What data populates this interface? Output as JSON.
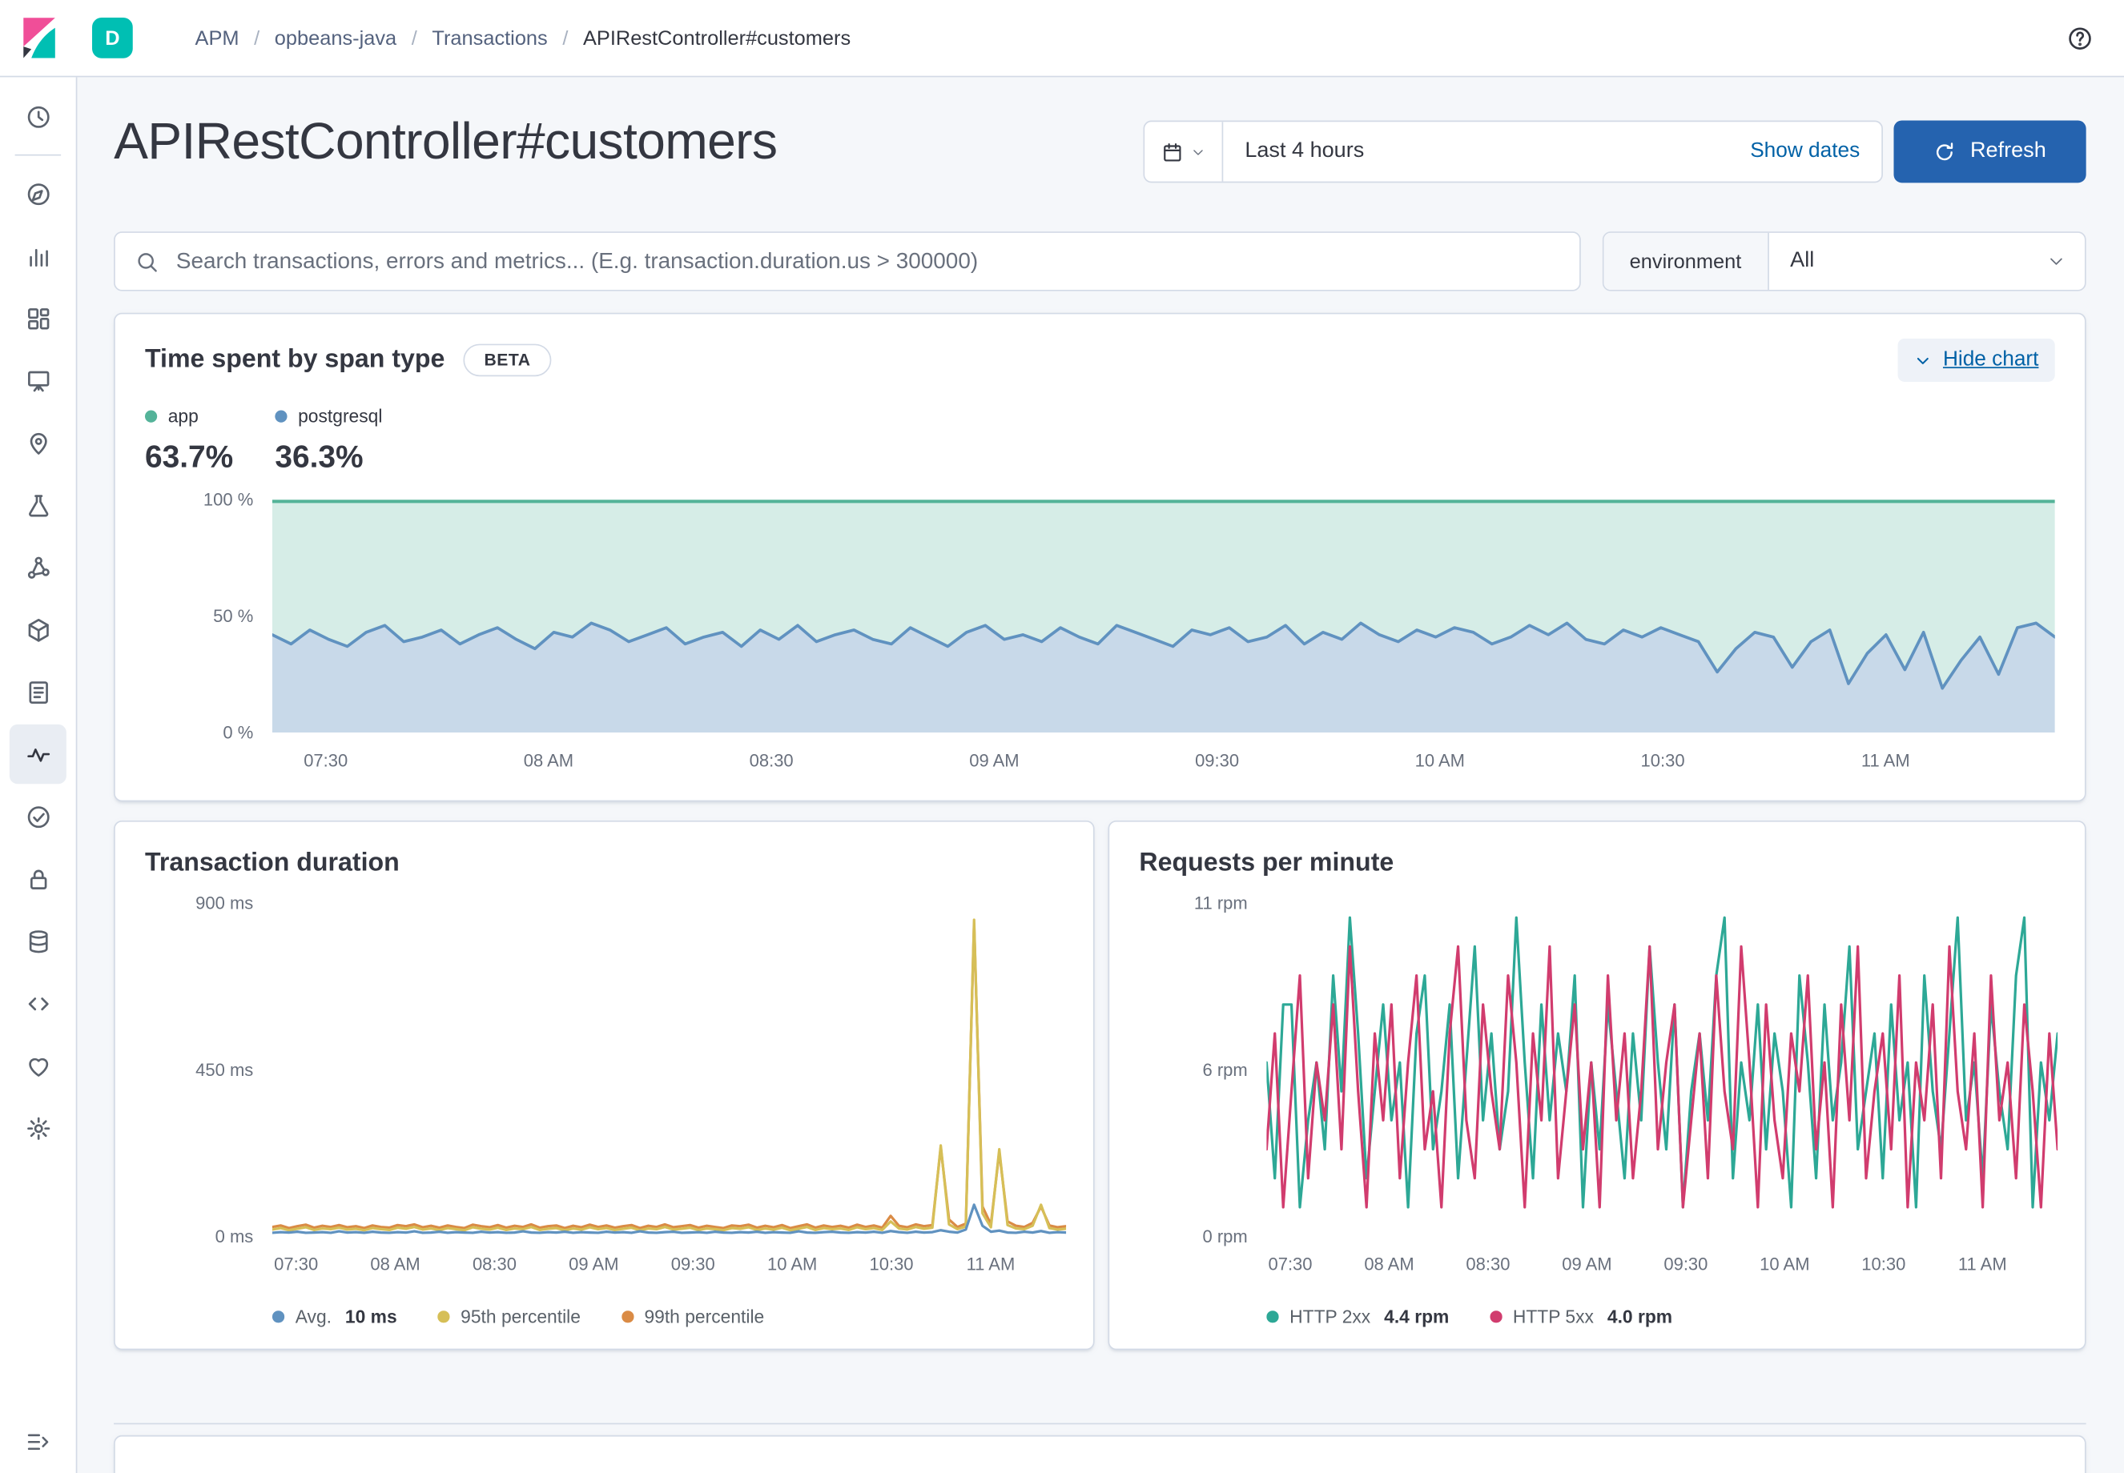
{
  "header": {
    "space_initial": "D",
    "breadcrumbs": [
      "APM",
      "opbeans-java",
      "Transactions",
      "APIRestController#customers"
    ]
  },
  "sidebar": {
    "active": "apm",
    "items": [
      "discover",
      "visualize",
      "dashboard",
      "canvas",
      "maps",
      "machine-learning",
      "graph",
      "metrics",
      "logs",
      "apm",
      "uptime",
      "siem",
      "fleet",
      "dev-tools",
      "monitoring",
      "management"
    ]
  },
  "page": {
    "title": "APIRestController#customers",
    "date_picker": {
      "value": "Last 4 hours",
      "show_dates": "Show dates",
      "refresh": "Refresh"
    },
    "search": {
      "placeholder": "Search transactions, errors and metrics... (E.g. transaction.duration.us > 300000)"
    },
    "environment_filter": {
      "label": "environment",
      "value": "All"
    }
  },
  "span_type_card": {
    "title": "Time spent by span type",
    "beta": "BETA",
    "hide_chart": "Hide chart",
    "legend": [
      {
        "label": "app",
        "pct": "63.7%",
        "color": "#54B399"
      },
      {
        "label": "postgresql",
        "pct": "36.3%",
        "color": "#6092C0"
      }
    ]
  },
  "duration_card": {
    "title": "Transaction duration"
  },
  "requests_card": {
    "title": "Requests per minute"
  },
  "chart_data": [
    {
      "id": "span-type",
      "type": "stacked_area",
      "title": "Time spent by span type",
      "x_ticks": [
        "07:30",
        "08 AM",
        "08:30",
        "09 AM",
        "09:30",
        "10 AM",
        "10:30",
        "11 AM"
      ],
      "y_ticks": [
        "100 %",
        "50 %",
        "0 %"
      ],
      "ylim": [
        0,
        100
      ],
      "unit": "%",
      "series": [
        {
          "name": "app",
          "color": "#54B399",
          "fill": "rgba(84,179,153,0.24)",
          "note": "stacked complement to 100%"
        },
        {
          "name": "postgresql",
          "color": "#6092C0",
          "fill": "rgba(96,146,192,0.35)",
          "values": [
            42,
            38,
            44,
            40,
            37,
            43,
            46,
            39,
            41,
            44,
            38,
            42,
            45,
            40,
            36,
            43,
            41,
            47,
            44,
            39,
            42,
            45,
            38,
            41,
            43,
            37,
            44,
            40,
            46,
            39,
            42,
            44,
            40,
            38,
            45,
            41,
            37,
            43,
            46,
            40,
            42,
            39,
            45,
            41,
            38,
            46,
            43,
            40,
            37,
            44,
            42,
            45,
            39,
            41,
            46,
            38,
            43,
            40,
            47,
            42,
            39,
            44,
            41,
            45,
            43,
            38,
            41,
            46,
            42,
            47,
            40,
            38,
            44,
            41,
            45,
            42,
            39,
            26,
            36,
            43,
            41,
            28,
            39,
            44,
            21,
            34,
            42,
            27,
            43,
            19,
            31,
            41,
            25,
            45,
            47,
            41
          ]
        }
      ]
    },
    {
      "id": "duration",
      "type": "line",
      "title": "Transaction duration",
      "x_ticks": [
        "07:30",
        "08 AM",
        "08:30",
        "09 AM",
        "09:30",
        "10 AM",
        "10:30",
        "11 AM"
      ],
      "y_ticks": [
        "900 ms",
        "450 ms",
        "0 ms"
      ],
      "ylim": [
        0,
        900
      ],
      "unit": "ms",
      "series": [
        {
          "name": "99th percentile",
          "color": "#DA8B45",
          "values": [
            25,
            29,
            22,
            27,
            31,
            23,
            28,
            25,
            30,
            24,
            27,
            22,
            29,
            25,
            23,
            30,
            27,
            32,
            24,
            28,
            23,
            29,
            25,
            22,
            31,
            27,
            24,
            30,
            23,
            28,
            25,
            32,
            23,
            27,
            29,
            22,
            28,
            24,
            31,
            25,
            29,
            23,
            27,
            30,
            22,
            28,
            25,
            32,
            24,
            27,
            30,
            23,
            28,
            25,
            22,
            29,
            27,
            31,
            23,
            28,
            24,
            30,
            22,
            27,
            32,
            23,
            29,
            25,
            28,
            23,
            31,
            25,
            29,
            23,
            55,
            28,
            24,
            32,
            27,
            30,
            240,
            45,
            25,
            34,
            845,
            80,
            32,
            228,
            40,
            28,
            25,
            36,
            80,
            29,
            24,
            27
          ]
        },
        {
          "name": "95th percentile",
          "color": "#D6BF57",
          "values": [
            18,
            22,
            16,
            20,
            24,
            17,
            21,
            19,
            23,
            18,
            20,
            16,
            22,
            19,
            17,
            23,
            20,
            25,
            18,
            21,
            17,
            22,
            19,
            16,
            24,
            20,
            18,
            23,
            17,
            21,
            19,
            25,
            17,
            20,
            22,
            16,
            21,
            18,
            24,
            19,
            22,
            17,
            20,
            23,
            16,
            21,
            19,
            25,
            18,
            20,
            23,
            17,
            21,
            19,
            16,
            22,
            20,
            24,
            17,
            21,
            18,
            23,
            16,
            20,
            25,
            17,
            22,
            19,
            21,
            17,
            24,
            19,
            22,
            17,
            40,
            21,
            18,
            25,
            20,
            23,
            245,
            32,
            19,
            26,
            855,
            62,
            24,
            235,
            30,
            21,
            19,
            28,
            85,
            22,
            18,
            20
          ]
        },
        {
          "name": "Avg.",
          "color": "#6092C0",
          "values": [
            9,
            11,
            10,
            12,
            9,
            10,
            11,
            9,
            13,
            10,
            11,
            9,
            12,
            10,
            9,
            11,
            10,
            13,
            9,
            10,
            12,
            9,
            11,
            10,
            9,
            12,
            10,
            11,
            9,
            10,
            13,
            10,
            9,
            11,
            10,
            12,
            9,
            11,
            10,
            9,
            12,
            10,
            11,
            9,
            13,
            10,
            9,
            11,
            12,
            9,
            10,
            11,
            9,
            12,
            10,
            9,
            11,
            10,
            12,
            9,
            11,
            10,
            9,
            13,
            10,
            9,
            11,
            12,
            10,
            9,
            11,
            10,
            12,
            9,
            14,
            11,
            9,
            12,
            10,
            11,
            16,
            12,
            10,
            18,
            85,
            28,
            12,
            15,
            10,
            9,
            12,
            10,
            14,
            9,
            11,
            10
          ]
        }
      ],
      "legend": [
        {
          "label": "Avg.",
          "value": "10 ms",
          "color": "#6092C0"
        },
        {
          "label": "95th percentile",
          "color": "#D6BF57"
        },
        {
          "label": "99th percentile",
          "color": "#DA8B45"
        }
      ]
    },
    {
      "id": "requests",
      "type": "line",
      "title": "Requests per minute",
      "x_ticks": [
        "07:30",
        "08 AM",
        "08:30",
        "09 AM",
        "09:30",
        "10 AM",
        "10:30",
        "11 AM"
      ],
      "y_ticks": [
        "11 rpm",
        "6 rpm",
        "0 rpm"
      ],
      "ylim": [
        0,
        11.5
      ],
      "unit": "rpm",
      "series": [
        {
          "name": "HTTP 2xx",
          "color": "#2DA896",
          "values": [
            6,
            2,
            8,
            8,
            1,
            4,
            6,
            3,
            9,
            5,
            11,
            7,
            2,
            5,
            8,
            4,
            6,
            1,
            7,
            9,
            3,
            5,
            8,
            2,
            6,
            10,
            4,
            7,
            3,
            5,
            11,
            6,
            2,
            8,
            4,
            7,
            5,
            9,
            1,
            6,
            3,
            8,
            5,
            2,
            7,
            4,
            10,
            6,
            3,
            8,
            1,
            5,
            7,
            4,
            9,
            11,
            2,
            6,
            4,
            8,
            3,
            7,
            5,
            1,
            9,
            6,
            2,
            8,
            4,
            6,
            10,
            3,
            5,
            7,
            2,
            8,
            4,
            6,
            1,
            9,
            5,
            3,
            7,
            11,
            4,
            6,
            2,
            8,
            5,
            3,
            9,
            11,
            1,
            6,
            4,
            7
          ]
        },
        {
          "name": "HTTP 5xx",
          "color": "#D13C6E",
          "values": [
            3,
            7,
            1,
            5,
            9,
            2,
            6,
            4,
            8,
            3,
            10,
            5,
            1,
            7,
            4,
            8,
            2,
            6,
            9,
            3,
            5,
            1,
            7,
            10,
            4,
            2,
            8,
            5,
            3,
            9,
            6,
            1,
            7,
            4,
            10,
            2,
            5,
            8,
            3,
            6,
            1,
            9,
            4,
            7,
            2,
            5,
            10,
            3,
            6,
            8,
            1,
            4,
            7,
            2,
            9,
            5,
            3,
            10,
            6,
            1,
            8,
            4,
            2,
            7,
            5,
            9,
            3,
            6,
            1,
            8,
            4,
            10,
            2,
            5,
            7,
            3,
            9,
            1,
            6,
            4,
            8,
            2,
            10,
            5,
            3,
            7,
            1,
            9,
            4,
            6,
            2,
            8,
            5,
            1,
            7,
            3
          ]
        }
      ],
      "legend": [
        {
          "label": "HTTP 2xx",
          "value": "4.4 rpm",
          "color": "#2DA896"
        },
        {
          "label": "HTTP 5xx",
          "value": "4.0 rpm",
          "color": "#D13C6E"
        }
      ]
    }
  ]
}
